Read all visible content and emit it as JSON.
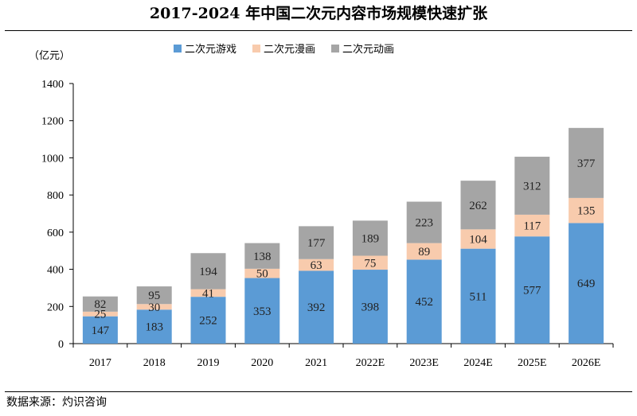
{
  "title": "2017-2024 年中国二次元内容市场规模快速扩张",
  "source": "数据来源：灼识咨询",
  "chart_data": {
    "type": "bar",
    "stacked": true,
    "unit_label": "（亿元）",
    "categories": [
      "2017",
      "2018",
      "2019",
      "2020",
      "2021",
      "2022E",
      "2023E",
      "2024E",
      "2025E",
      "2026E"
    ],
    "series": [
      {
        "name": "二次元游戏",
        "color": "#5b9bd5",
        "values": [
          147,
          183,
          252,
          353,
          392,
          398,
          452,
          511,
          577,
          649
        ]
      },
      {
        "name": "二次元漫画",
        "color": "#f8cbad",
        "values": [
          25,
          30,
          41,
          50,
          63,
          75,
          89,
          104,
          117,
          135
        ]
      },
      {
        "name": "二次元动画",
        "color": "#a5a5a5",
        "values": [
          82,
          95,
          194,
          138,
          177,
          189,
          223,
          262,
          312,
          377
        ]
      }
    ],
    "ylim": [
      0,
      1400
    ],
    "yticks": [
      0,
      200,
      400,
      600,
      800,
      1000,
      1200,
      1400
    ],
    "legend_position": "top-center",
    "grid": false
  }
}
